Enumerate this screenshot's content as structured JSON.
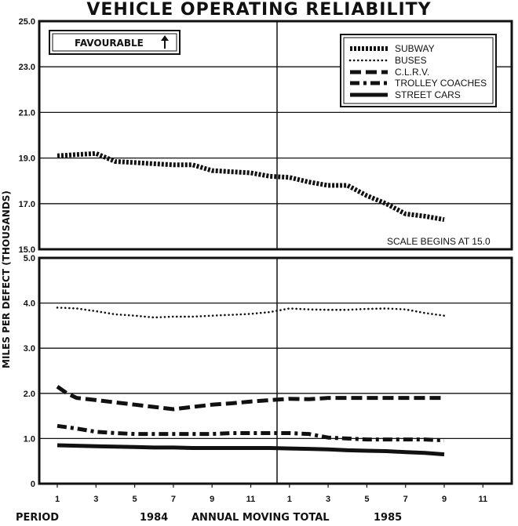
{
  "chart_data": {
    "type": "line",
    "title": "VEHICLE OPERATING RELIABILITY",
    "ylabel": "MILES PER DEFECT (THOUSANDS)",
    "favourable_label": "FAVOURABLE",
    "scale_note": "SCALE BEGINS AT 15.0",
    "x_tick_labels": [
      "1",
      "3",
      "5",
      "7",
      "9",
      "11",
      "1",
      "3",
      "5",
      "7",
      "9",
      "11"
    ],
    "bottom_labels": {
      "period": "PERIOD",
      "year1": "1984",
      "center": "ANNUAL MOVING TOTAL",
      "year2": "1985"
    },
    "top_panel": {
      "ylim": [
        15.0,
        25.0
      ],
      "y_ticks": [
        "15.0",
        "17.0",
        "19.0",
        "21.0",
        "23.0",
        "25.0"
      ],
      "series": [
        {
          "name": "SUBWAY",
          "style": "subway",
          "x": [
            0,
            1,
            2,
            3,
            4,
            5,
            6,
            7,
            8,
            9,
            10,
            11,
            12,
            13,
            14,
            15,
            16,
            17,
            18,
            19,
            20
          ],
          "values": [
            19.1,
            19.15,
            19.2,
            18.85,
            18.8,
            18.75,
            18.7,
            18.7,
            18.45,
            18.4,
            18.35,
            18.2,
            18.15,
            17.95,
            17.8,
            17.8,
            17.35,
            17.0,
            16.55,
            16.45,
            16.3
          ]
        }
      ]
    },
    "bottom_panel": {
      "ylim": [
        0,
        5.0
      ],
      "y_ticks": [
        "0",
        "1.0",
        "2.0",
        "3.0",
        "4.0",
        "5.0"
      ],
      "series": [
        {
          "name": "BUSES",
          "style": "buses",
          "x": [
            0,
            1,
            2,
            3,
            4,
            5,
            6,
            7,
            8,
            9,
            10,
            11,
            12,
            13,
            14,
            15,
            16,
            17,
            18,
            19,
            20
          ],
          "values": [
            3.9,
            3.88,
            3.82,
            3.75,
            3.72,
            3.68,
            3.7,
            3.7,
            3.72,
            3.74,
            3.76,
            3.8,
            3.88,
            3.86,
            3.85,
            3.85,
            3.87,
            3.88,
            3.86,
            3.78,
            3.72
          ]
        },
        {
          "name": "C.L.R.V.",
          "style": "clrv",
          "x": [
            0,
            0.5,
            1,
            2,
            3,
            4,
            5,
            6,
            7,
            8,
            9,
            10,
            11,
            12,
            13,
            14,
            15,
            16,
            17,
            18,
            19,
            20
          ],
          "values": [
            2.15,
            2.0,
            1.9,
            1.85,
            1.8,
            1.75,
            1.7,
            1.65,
            1.7,
            1.75,
            1.78,
            1.82,
            1.85,
            1.88,
            1.87,
            1.9,
            1.9,
            1.9,
            1.9,
            1.9,
            1.9,
            1.9
          ]
        },
        {
          "name": "TROLLEY COACHES",
          "style": "trolley",
          "x": [
            0,
            1,
            2,
            3,
            4,
            5,
            6,
            7,
            8,
            9,
            10,
            11,
            12,
            13,
            14,
            15,
            16,
            17,
            18,
            19,
            20
          ],
          "values": [
            1.28,
            1.22,
            1.15,
            1.12,
            1.1,
            1.1,
            1.1,
            1.1,
            1.1,
            1.12,
            1.12,
            1.12,
            1.12,
            1.1,
            1.02,
            1.0,
            0.98,
            0.98,
            0.98,
            0.98,
            0.96
          ]
        },
        {
          "name": "STREET CARS",
          "style": "streetcars",
          "x": [
            0,
            1,
            2,
            3,
            4,
            5,
            6,
            7,
            8,
            9,
            10,
            11,
            12,
            13,
            14,
            15,
            16,
            17,
            18,
            19,
            20
          ],
          "values": [
            0.85,
            0.84,
            0.83,
            0.82,
            0.81,
            0.8,
            0.8,
            0.79,
            0.79,
            0.79,
            0.79,
            0.79,
            0.78,
            0.77,
            0.76,
            0.74,
            0.73,
            0.72,
            0.7,
            0.68,
            0.65
          ]
        }
      ]
    },
    "legend": [
      "SUBWAY",
      "BUSES",
      "C.L.R.V.",
      "TROLLEY COACHES",
      "STREET CARS"
    ]
  }
}
